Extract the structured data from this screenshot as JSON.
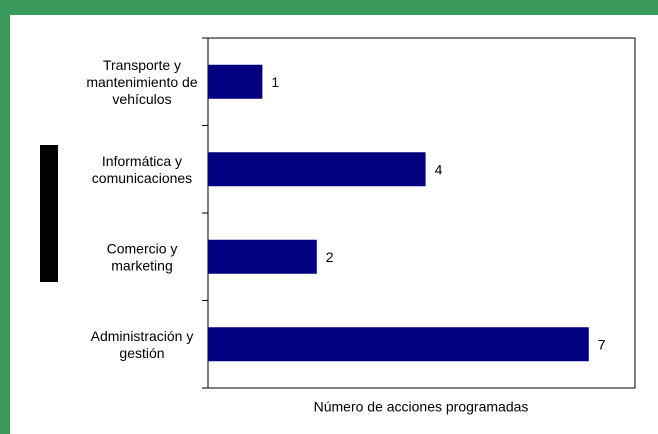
{
  "chart_data": {
    "type": "bar",
    "orientation": "horizontal",
    "x_label": "Número de acciones programadas",
    "categories": [
      "Transporte y\nmantenimiento de\nvehículos",
      "Informática y\ncomunicaciones",
      "Comercio y\nmarketing",
      "Administración y\ngestión"
    ],
    "values": [
      1,
      4,
      2,
      7
    ],
    "color": "#000080",
    "xlim": [
      0,
      7.85
    ]
  }
}
